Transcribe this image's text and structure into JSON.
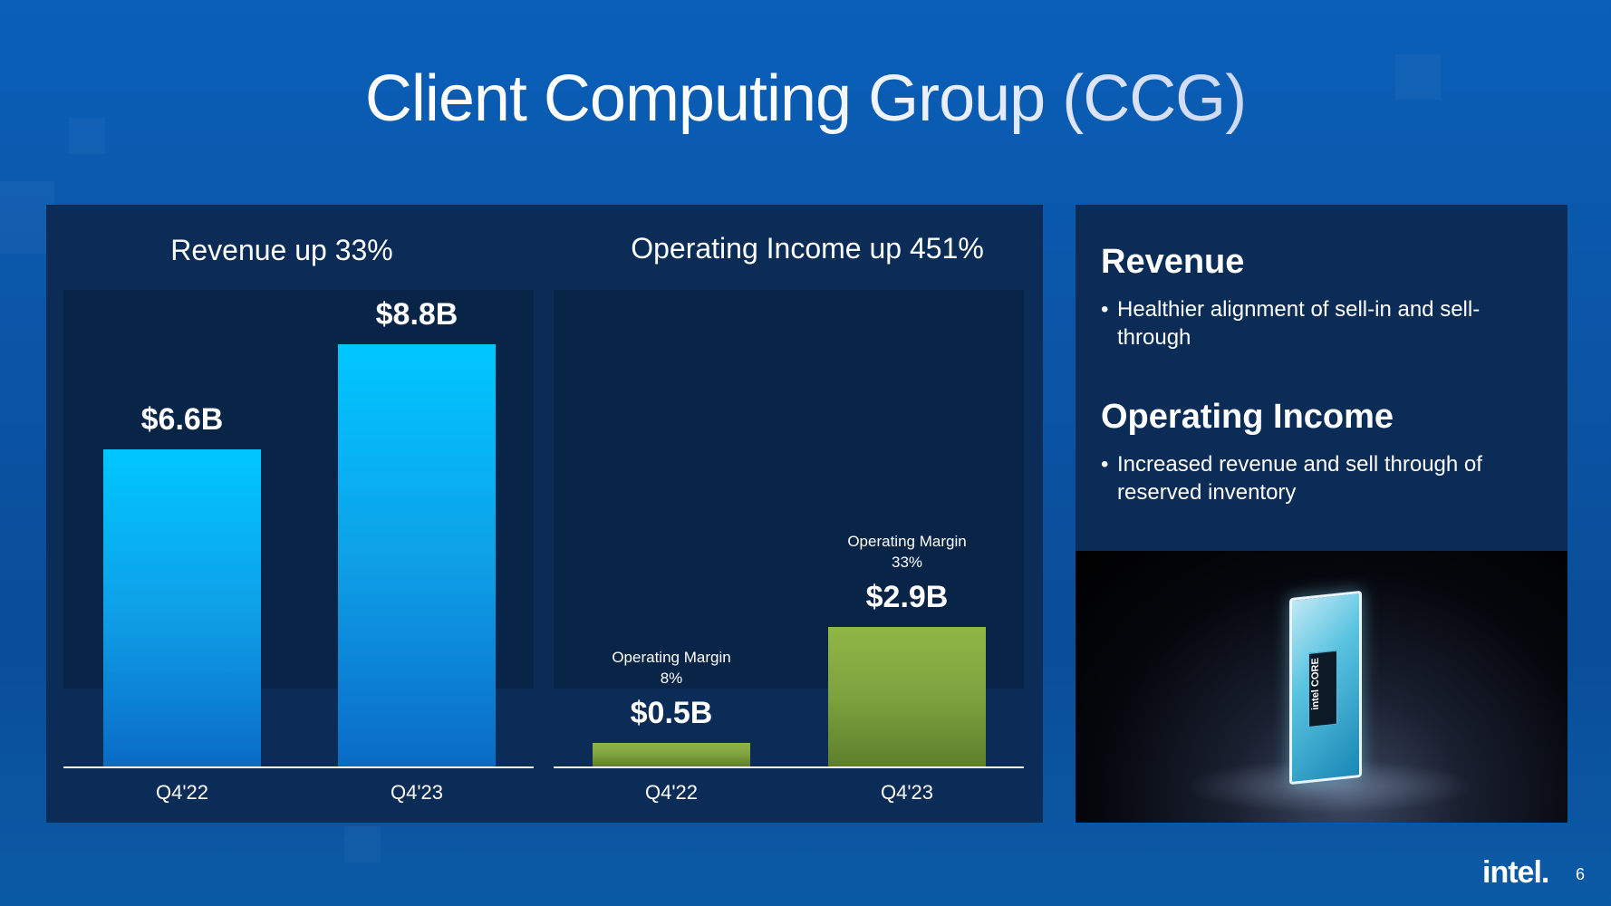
{
  "title": "Client Computing Group (CCG)",
  "chart_data": [
    {
      "type": "bar",
      "title": "Revenue up 33%",
      "categories": [
        "Q4'22",
        "Q4'23"
      ],
      "values": [
        6.6,
        8.8
      ],
      "value_labels": [
        "$6.6B",
        "$8.8B"
      ],
      "unit": "$B",
      "ylim": [
        0,
        10
      ]
    },
    {
      "type": "bar",
      "title": "Operating Income up 451%",
      "categories": [
        "Q4'22",
        "Q4'23"
      ],
      "values": [
        0.5,
        2.9
      ],
      "value_labels": [
        "$0.5B",
        "$2.9B"
      ],
      "annotations": [
        "Operating Margin 8%",
        "Operating Margin 33%"
      ],
      "unit": "$B",
      "ylim": [
        0,
        10
      ]
    }
  ],
  "sidebar": {
    "sections": [
      {
        "heading": "Revenue",
        "bullet": "Healthier alignment of sell-in and sell-through"
      },
      {
        "heading": "Operating Income",
        "bullet": "Increased revenue and sell through of reserved inventory"
      }
    ]
  },
  "product_image": {
    "chip_text": "intel CORE"
  },
  "footer": {
    "brand": "intel.",
    "page_number": "6"
  },
  "colors": {
    "revenue_bar": "#00c7ff",
    "operating_income_bar": "#8fb647",
    "background": "#0a5fb8",
    "panel": "#0b2c57"
  }
}
